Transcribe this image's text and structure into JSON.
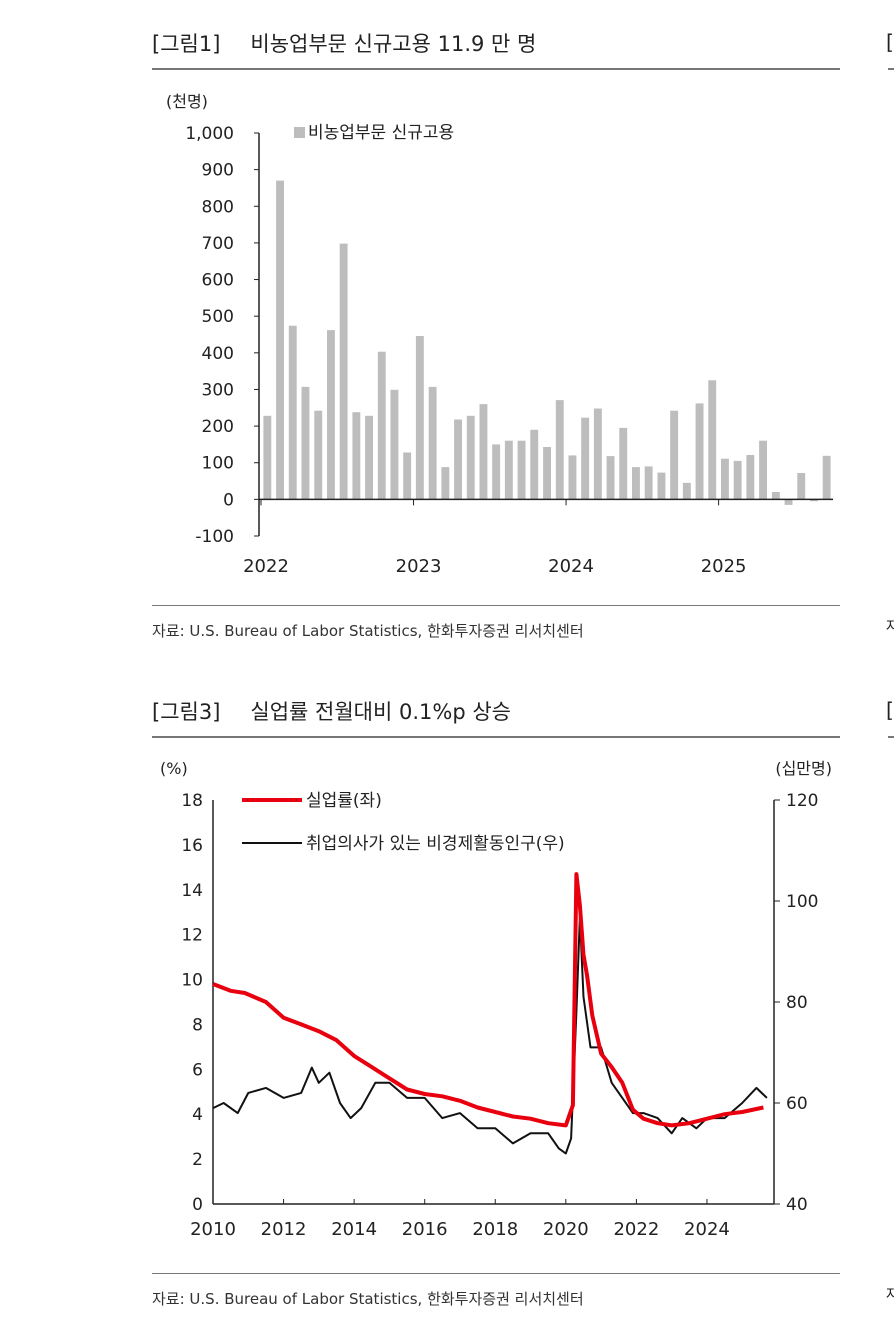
{
  "figures": {
    "fig1": {
      "label": "[그림1]",
      "title": "비농업부문 신규고용 11.9 만 명",
      "source": "자료: U.S. Bureau of Labor Statistics, 한화투자증권 리서치센터"
    },
    "fig3": {
      "label": "[그림3]",
      "title": "실업률 전월대비 0.1%p 상승",
      "source": "자료: U.S. Bureau of Labor Statistics, 한화투자증권 리서치센터"
    }
  },
  "edge": {
    "glyph_top": "[",
    "glyph_bottom": "[",
    "glyph_src1": "자",
    "glyph_src2": "자"
  },
  "chart_data": [
    {
      "type": "bar",
      "title": "비농업부문 신규고용 11.9 만 명",
      "ylabel": "(천명)",
      "ylim": [
        -100,
        1000
      ],
      "yticks": [
        "1,000",
        "900",
        "800",
        "700",
        "600",
        "500",
        "400",
        "300",
        "200",
        "100",
        "0",
        "-100"
      ],
      "ytick_values": [
        1000,
        900,
        800,
        700,
        600,
        500,
        400,
        300,
        200,
        100,
        0,
        -100
      ],
      "xticks": [
        "2022",
        "2023",
        "2024",
        "2025"
      ],
      "legend": "top-left",
      "color": "#bdbdbd",
      "series": [
        {
          "name": "비농업부문 신규고용",
          "values": [
            228,
            870,
            474,
            307,
            242,
            462,
            698,
            238,
            228,
            403,
            299,
            128,
            446,
            307,
            88,
            218,
            228,
            260,
            150,
            160,
            160,
            190,
            143,
            271,
            120,
            223,
            248,
            118,
            195,
            88,
            90,
            73,
            242,
            45,
            262,
            325,
            111,
            105,
            121,
            160,
            20,
            -15,
            72,
            -5,
            119
          ]
        }
      ]
    },
    {
      "type": "line",
      "title": "실업률 전월대비 0.1%p 상승",
      "ylabel_left": "(%)",
      "ylabel_right": "(십만명)",
      "ylim_left": [
        0,
        18
      ],
      "ylim_right": [
        40,
        120
      ],
      "yticks_left": [
        "18",
        "16",
        "14",
        "12",
        "10",
        "8",
        "6",
        "4",
        "2",
        "0"
      ],
      "yticks_left_values": [
        18,
        16,
        14,
        12,
        10,
        8,
        6,
        4,
        2,
        0
      ],
      "yticks_right": [
        "120",
        "100",
        "80",
        "60",
        "40"
      ],
      "yticks_right_values": [
        120,
        100,
        80,
        60,
        40
      ],
      "xticks": [
        "2010",
        "2012",
        "2014",
        "2016",
        "2018",
        "2020",
        "2022",
        "2024"
      ],
      "xtick_values": [
        2010,
        2012,
        2014,
        2016,
        2018,
        2020,
        2022,
        2024
      ],
      "xlim": [
        2010,
        2025.9
      ],
      "legend": "top-left",
      "series": [
        {
          "name": "실업률(좌)",
          "axis": "left",
          "color": "#e8000f",
          "x": [
            2010,
            2010.5,
            2010.9,
            2011.5,
            2012,
            2012.5,
            2013,
            2013.5,
            2014,
            2014.5,
            2015,
            2015.5,
            2016,
            2016.5,
            2017,
            2017.5,
            2018,
            2018.5,
            2019,
            2019.5,
            2020,
            2020.2,
            2020.3,
            2020.4,
            2020.5,
            2020.6,
            2020.75,
            2021,
            2021.3,
            2021.6,
            2021.9,
            2022.2,
            2022.6,
            2023,
            2023.5,
            2024,
            2024.5,
            2025,
            2025.6
          ],
          "y": [
            9.8,
            9.5,
            9.4,
            9.0,
            8.3,
            8.0,
            7.7,
            7.3,
            6.6,
            6.1,
            5.6,
            5.1,
            4.9,
            4.8,
            4.6,
            4.3,
            4.1,
            3.9,
            3.8,
            3.6,
            3.5,
            4.4,
            14.7,
            13.3,
            11.1,
            10.2,
            8.4,
            6.7,
            6.1,
            5.4,
            4.2,
            3.8,
            3.6,
            3.5,
            3.6,
            3.8,
            4.0,
            4.1,
            4.3
          ]
        },
        {
          "name": "취업의사가 있는 비경제활동인구(우)",
          "axis": "right",
          "color": "#111111",
          "x": [
            2010,
            2010.3,
            2010.7,
            2011,
            2011.5,
            2012,
            2012.5,
            2012.8,
            2013,
            2013.3,
            2013.6,
            2013.9,
            2014.2,
            2014.6,
            2015,
            2015.5,
            2016,
            2016.5,
            2017,
            2017.5,
            2018,
            2018.5,
            2019,
            2019.5,
            2019.8,
            2020,
            2020.15,
            2020.3,
            2020.4,
            2020.5,
            2020.7,
            2021,
            2021.3,
            2021.6,
            2021.9,
            2022.2,
            2022.6,
            2023,
            2023.3,
            2023.7,
            2024,
            2024.5,
            2025,
            2025.4,
            2025.7
          ],
          "y": [
            59,
            60,
            58,
            62,
            63,
            61,
            62,
            67,
            64,
            66,
            60,
            57,
            59,
            64,
            64,
            61,
            61,
            57,
            58,
            55,
            55,
            52,
            54,
            54,
            51,
            50,
            53,
            78,
            97,
            81,
            71,
            71,
            64,
            61,
            58,
            58,
            57,
            54,
            57,
            55,
            57,
            57,
            60,
            63,
            61
          ]
        }
      ]
    }
  ]
}
